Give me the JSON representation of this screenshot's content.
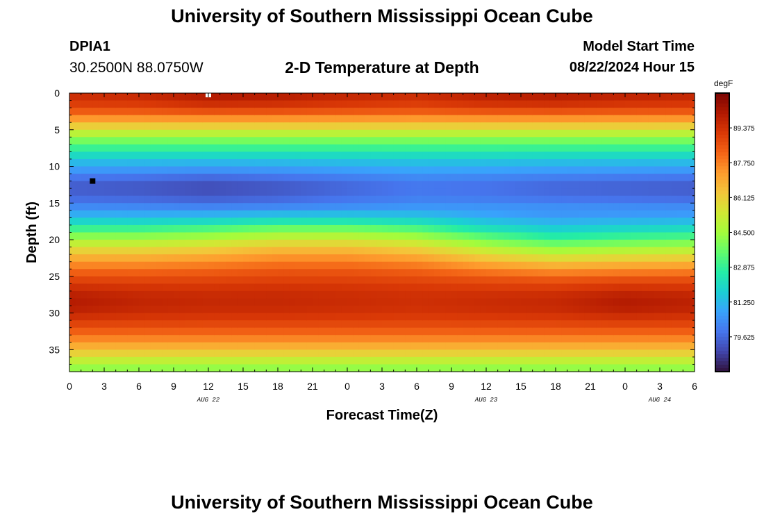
{
  "header": {
    "title": "University of Southern Mississippi Ocean Cube",
    "station": "DPIA1",
    "coordinates": "30.2500N  88.0750W",
    "plot_title": "2-D Temperature at Depth",
    "model_start_label": "Model Start Time",
    "model_start_time": "08/22/2024 Hour 15"
  },
  "footer": {
    "title": "University of Southern Mississippi Ocean Cube"
  },
  "chart_data": {
    "type": "heatmap",
    "title": "2-D Temperature at Depth",
    "xlabel": "Forecast Time(Z)",
    "ylabel": "Depth (ft)",
    "x_tick_labels": [
      "0",
      "3",
      "6",
      "9",
      "12",
      "15",
      "18",
      "21",
      "0",
      "3",
      "6",
      "9",
      "12",
      "15",
      "18",
      "21",
      "0",
      "3",
      "6"
    ],
    "date_labels": [
      {
        "label": "AUG 22",
        "hour_index": 12
      },
      {
        "label": "AUG 23",
        "hour_index": 36
      },
      {
        "label": "AUG 24",
        "hour_index": 51
      }
    ],
    "xlim_hours": [
      0,
      54
    ],
    "y_ticks": [
      0,
      5,
      10,
      15,
      20,
      25,
      30,
      35
    ],
    "ylim_ft": [
      0,
      38
    ],
    "colorbar": {
      "unit": "degF",
      "min": 78.0,
      "max": 91.0,
      "tick_labels": [
        "89.375",
        "87.750",
        "86.125",
        "84.500",
        "82.875",
        "81.250",
        "79.625"
      ],
      "tick_values": [
        89.375,
        87.75,
        86.125,
        84.5,
        82.875,
        81.25,
        79.625
      ]
    },
    "colormap": [
      "#30123b",
      "#4145ab",
      "#4675ed",
      "#39a2fc",
      "#1bcfd4",
      "#24eca6",
      "#61fc6c",
      "#a4fc3b",
      "#d1e834",
      "#f3c63a",
      "#fe9b2d",
      "#f36315",
      "#d93806",
      "#b11901",
      "#7a0403"
    ],
    "depth_profile": [
      {
        "depth": 0,
        "temp": 89.8
      },
      {
        "depth": 1,
        "temp": 89.4
      },
      {
        "depth": 2,
        "temp": 88.9
      },
      {
        "depth": 3,
        "temp": 88.0
      },
      {
        "depth": 4,
        "temp": 86.7
      },
      {
        "depth": 5,
        "temp": 85.6
      },
      {
        "depth": 6,
        "temp": 84.3
      },
      {
        "depth": 7,
        "temp": 83.4
      },
      {
        "depth": 8,
        "temp": 82.5
      },
      {
        "depth": 9,
        "temp": 81.6
      },
      {
        "depth": 10,
        "temp": 80.9
      },
      {
        "depth": 11,
        "temp": 80.3
      },
      {
        "depth": 12,
        "temp": 79.5
      },
      {
        "depth": 13,
        "temp": 79.4
      },
      {
        "depth": 14,
        "temp": 79.5
      },
      {
        "depth": 15,
        "temp": 80.0
      },
      {
        "depth": 16,
        "temp": 80.6
      },
      {
        "depth": 17,
        "temp": 81.4
      },
      {
        "depth": 18,
        "temp": 82.4
      },
      {
        "depth": 19,
        "temp": 83.6
      },
      {
        "depth": 20,
        "temp": 84.6
      },
      {
        "depth": 21,
        "temp": 85.6
      },
      {
        "depth": 22,
        "temp": 86.5
      },
      {
        "depth": 23,
        "temp": 87.3
      },
      {
        "depth": 24,
        "temp": 88.0
      },
      {
        "depth": 25,
        "temp": 88.6
      },
      {
        "depth": 26,
        "temp": 89.0
      },
      {
        "depth": 27,
        "temp": 89.4
      },
      {
        "depth": 28,
        "temp": 89.6
      },
      {
        "depth": 29,
        "temp": 89.6
      },
      {
        "depth": 30,
        "temp": 89.4
      },
      {
        "depth": 31,
        "temp": 89.0
      },
      {
        "depth": 32,
        "temp": 88.6
      },
      {
        "depth": 33,
        "temp": 88.0
      },
      {
        "depth": 34,
        "temp": 87.3
      },
      {
        "depth": 35,
        "temp": 86.5
      },
      {
        "depth": 36,
        "temp": 85.6
      },
      {
        "depth": 37,
        "temp": 84.6
      },
      {
        "depth": 38,
        "temp": 84.0
      }
    ],
    "time_anomalies": [
      {
        "hour": 0,
        "surface": -0.2,
        "thermocline": 0.0,
        "bottom": 0.4,
        "warm_layer_shift_ft": 0.0
      },
      {
        "hour": 6,
        "surface": -0.1,
        "thermocline": -0.1,
        "bottom": 0.1,
        "warm_layer_shift_ft": 0.0
      },
      {
        "hour": 12,
        "surface": 0.4,
        "thermocline": -0.3,
        "bottom": 0.0,
        "warm_layer_shift_ft": 0.3
      },
      {
        "hour": 18,
        "surface": 0.3,
        "thermocline": -0.1,
        "bottom": 0.0,
        "warm_layer_shift_ft": 0.8
      },
      {
        "hour": 24,
        "surface": 0.0,
        "thermocline": 0.2,
        "bottom": -0.1,
        "warm_layer_shift_ft": 0.8
      },
      {
        "hour": 30,
        "surface": -0.2,
        "thermocline": 0.5,
        "bottom": -0.2,
        "warm_layer_shift_ft": 0.3
      },
      {
        "hour": 36,
        "surface": 0.2,
        "thermocline": 0.4,
        "bottom": -0.1,
        "warm_layer_shift_ft": -0.8
      },
      {
        "hour": 42,
        "surface": 0.3,
        "thermocline": 0.2,
        "bottom": 0.0,
        "warm_layer_shift_ft": -1.5
      },
      {
        "hour": 48,
        "surface": 0.1,
        "thermocline": 0.1,
        "bottom": 0.4,
        "warm_layer_shift_ft": -1.2
      },
      {
        "hour": 54,
        "surface": 0.0,
        "thermocline": 0.0,
        "bottom": 0.2,
        "warm_layer_shift_ft": -1.0
      }
    ],
    "markers": [
      {
        "name": "surface-marker",
        "hour": 12,
        "depth": 0.2,
        "color": "#ffffff"
      },
      {
        "name": "thermocline-marker",
        "hour": 2,
        "depth": 12.0,
        "color": "#000000"
      }
    ]
  }
}
